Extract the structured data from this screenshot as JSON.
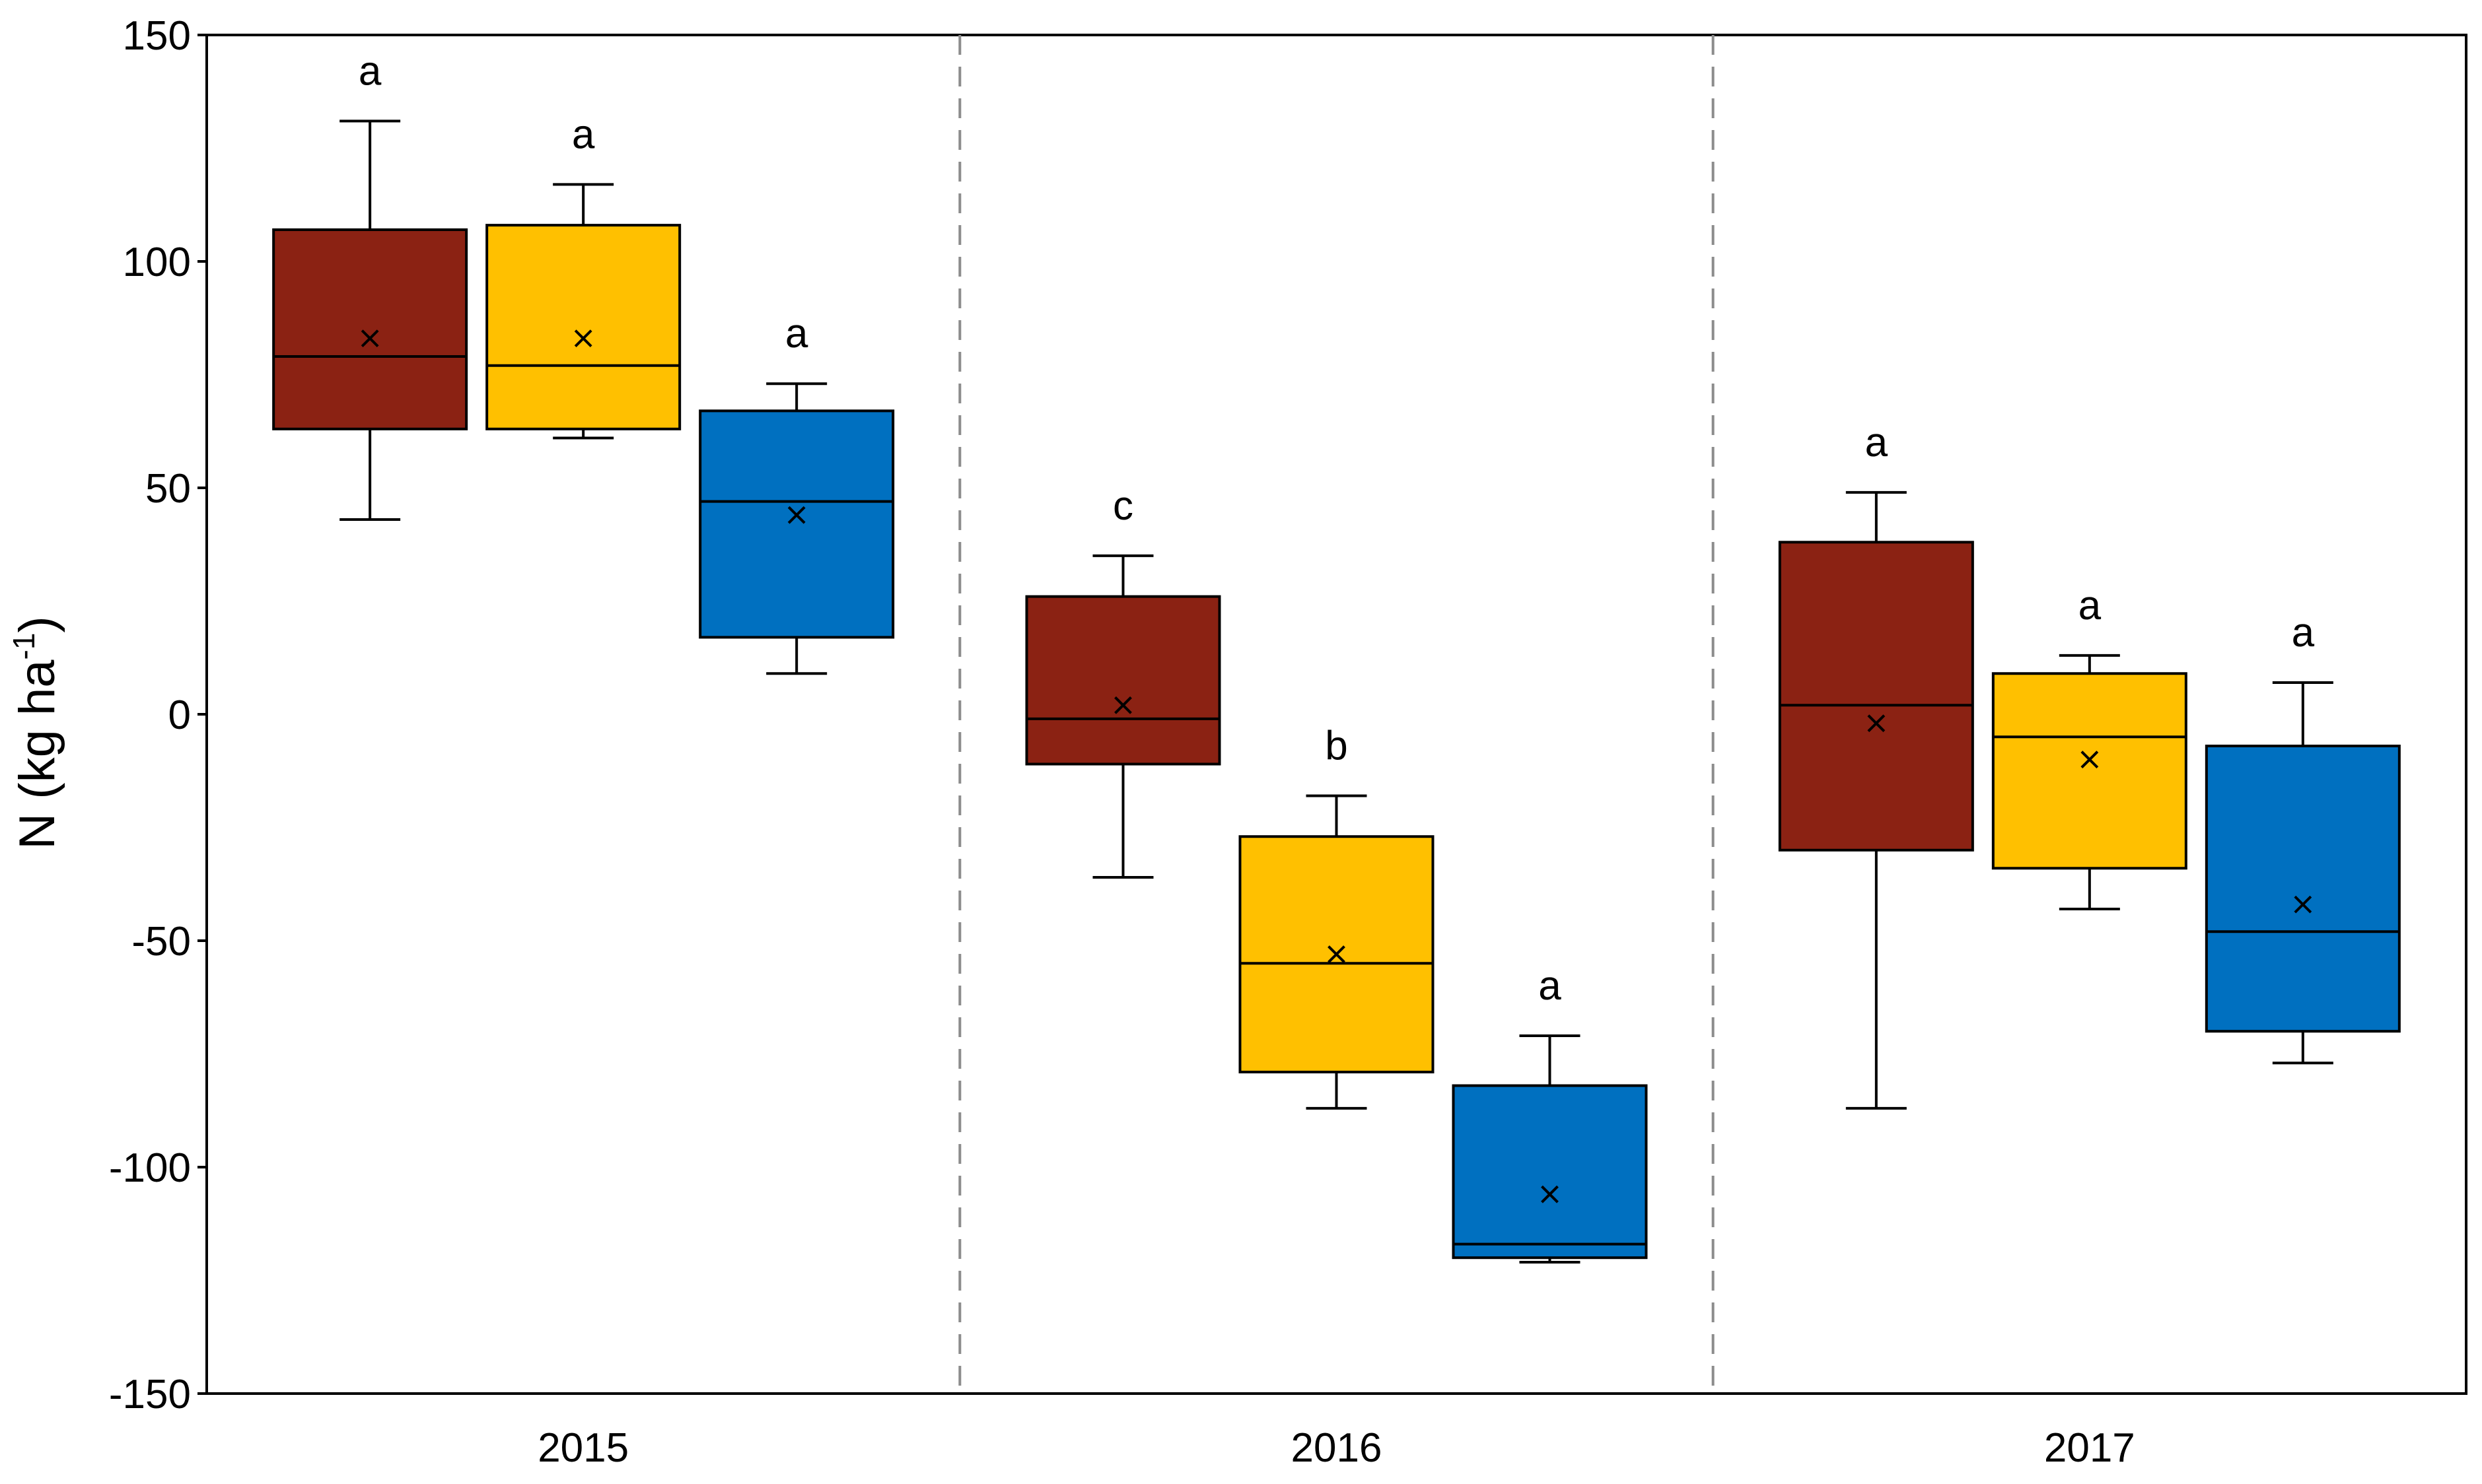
{
  "chart_data": {
    "type": "box",
    "ylabel": "N (kg ha",
    "ylabel_superscript": "-1",
    "ylabel_close": ")",
    "ylim": [
      -150,
      150
    ],
    "yticks": [
      150,
      100,
      50,
      0,
      -50,
      -100,
      -150
    ],
    "ytick_labels": [
      "150",
      "100",
      "50",
      "0",
      "-50",
      "-100",
      "-150"
    ],
    "categories": [
      "2015",
      "2016",
      "2017"
    ],
    "grid": false,
    "group_separators": "dashed",
    "series_colors": [
      "#8B2213",
      "#FFC000",
      "#0070C0"
    ],
    "groups": [
      {
        "category": "2015",
        "boxes": [
          {
            "color": "#8B2213",
            "whisker_low": 43,
            "q1": 63,
            "median": 79,
            "q3": 107,
            "whisker_high": 131,
            "mean": 83,
            "label": "a"
          },
          {
            "color": "#FFC000",
            "whisker_low": 61,
            "q1": 63,
            "median": 77,
            "q3": 108,
            "whisker_high": 117,
            "mean": 83,
            "label": "a"
          },
          {
            "color": "#0070C0",
            "whisker_low": 9,
            "q1": 17,
            "median": 47,
            "q3": 67,
            "whisker_high": 73,
            "mean": 44,
            "label": "a"
          }
        ]
      },
      {
        "category": "2016",
        "boxes": [
          {
            "color": "#8B2213",
            "whisker_low": -36,
            "q1": -11,
            "median": -1,
            "q3": 26,
            "whisker_high": 35,
            "mean": 2,
            "label": "c"
          },
          {
            "color": "#FFC000",
            "whisker_low": -87,
            "q1": -79,
            "median": -55,
            "q3": -27,
            "whisker_high": -18,
            "mean": -53,
            "label": "b"
          },
          {
            "color": "#0070C0",
            "whisker_low": -121,
            "q1": -120,
            "median": -117,
            "q3": -82,
            "whisker_high": -71,
            "mean": -106,
            "label": "a"
          }
        ]
      },
      {
        "category": "2017",
        "boxes": [
          {
            "color": "#8B2213",
            "whisker_low": -87,
            "q1": -30,
            "median": 2,
            "q3": 38,
            "whisker_high": 49,
            "mean": -2,
            "label": "a"
          },
          {
            "color": "#FFC000",
            "whisker_low": -43,
            "q1": -34,
            "median": -5,
            "q3": 9,
            "whisker_high": 13,
            "mean": -10,
            "label": "a"
          },
          {
            "color": "#0070C0",
            "whisker_low": -77,
            "q1": -70,
            "median": -48,
            "q3": -7,
            "whisker_high": 7,
            "mean": -42,
            "label": "a"
          }
        ]
      }
    ]
  }
}
